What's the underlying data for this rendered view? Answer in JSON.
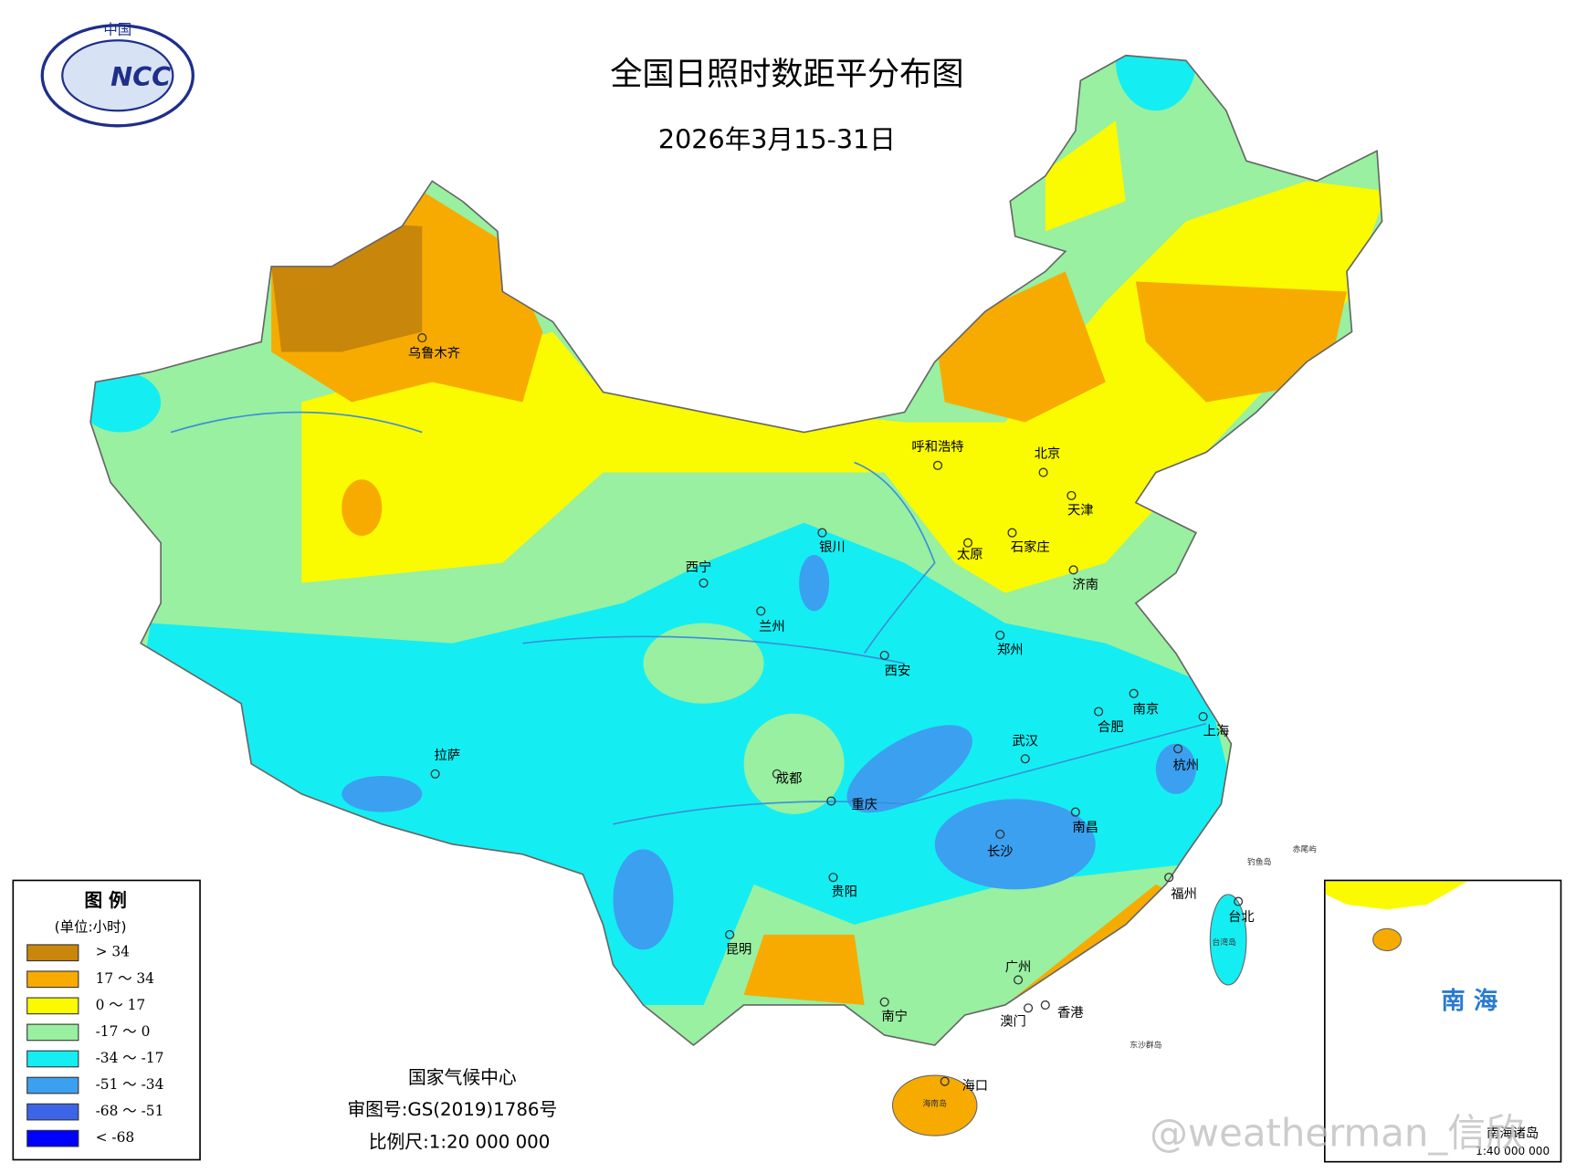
{
  "header": {
    "logo_top": "中国",
    "logo_text": "NCC",
    "title": "全国日照时数距平分布图",
    "subtitle": "2026年3月15-31日"
  },
  "legend": {
    "title": "图 例",
    "unit": "(单位:小时)",
    "items": [
      {
        "label": "> 34",
        "color": "#c8860a"
      },
      {
        "label": "17 ～ 34",
        "color": "#f7ab00"
      },
      {
        "label": "0 ～ 17",
        "color": "#fafa00"
      },
      {
        "label": "-17 ～ 0",
        "color": "#98f0a0"
      },
      {
        "label": "-34 ～ -17",
        "color": "#14eef2"
      },
      {
        "label": "-51 ～ -34",
        "color": "#3ca0f0"
      },
      {
        "label": "-68 ～ -51",
        "color": "#3c64e6"
      },
      {
        "label": "< -68",
        "color": "#0000ff"
      }
    ]
  },
  "cities": [
    "乌鲁木齐",
    "拉萨",
    "西宁",
    "兰州",
    "银川",
    "呼和浩特",
    "北京",
    "天津",
    "石家庄",
    "太原",
    "济南",
    "郑州",
    "西安",
    "南京",
    "合肥",
    "上海",
    "武汉",
    "杭州",
    "成都",
    "重庆",
    "长沙",
    "南昌",
    "贵阳",
    "福州",
    "台北",
    "昆明",
    "南宁",
    "广州",
    "香港",
    "澳门",
    "海口"
  ],
  "places": [
    "海南岛",
    "台湾岛",
    "钓鱼岛",
    "赤尾屿",
    "东沙群岛"
  ],
  "inset": {
    "label": "南 海",
    "name": "南海诸岛",
    "scale": "1:40 000 000"
  },
  "credits": {
    "org": "国家气候中心",
    "review": "审图号:GS(2019)1786号",
    "scale": "比例尺:1:20 000 000"
  },
  "watermark": "@weatherman_信欣"
}
